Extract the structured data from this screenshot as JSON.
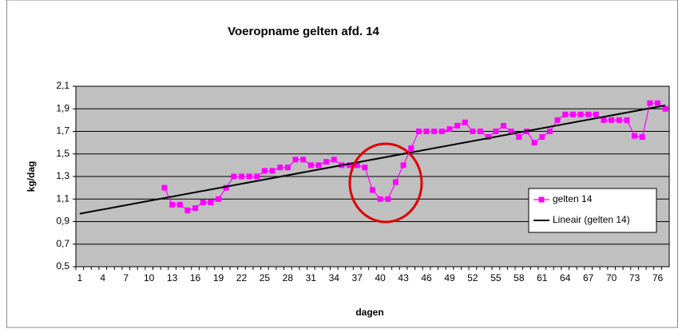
{
  "chart_data": {
    "type": "line",
    "title": "Voeropname gelten afd. 14",
    "x_label": "dagen",
    "y_label": "kg/dag",
    "categories": [
      1,
      null,
      null,
      4,
      null,
      null,
      7,
      null,
      null,
      10,
      null,
      null,
      13,
      null,
      null,
      16,
      null,
      null,
      19,
      null,
      null,
      22,
      null,
      null,
      25,
      null,
      null,
      28,
      null,
      null,
      31,
      null,
      null,
      34,
      null,
      null,
      37,
      null,
      null,
      40,
      null,
      null,
      43,
      null,
      null,
      46,
      null,
      null,
      49,
      null,
      null,
      52,
      null,
      null,
      55,
      null,
      null,
      58,
      null,
      null,
      61,
      null,
      null,
      64,
      null,
      null,
      67,
      null,
      null,
      70,
      null,
      null,
      73,
      null,
      null,
      76,
      null
    ],
    "series": [
      {
        "name": "gelten 14",
        "color": "#ff00ff",
        "values": [
          null,
          null,
          null,
          null,
          null,
          null,
          null,
          null,
          null,
          null,
          null,
          1.2,
          1.05,
          1.05,
          1.0,
          1.02,
          1.07,
          1.07,
          1.1,
          1.2,
          1.3,
          1.3,
          1.3,
          1.3,
          1.35,
          1.35,
          1.38,
          1.38,
          1.45,
          1.45,
          1.4,
          1.4,
          1.43,
          1.45,
          1.4,
          1.4,
          1.4,
          1.38,
          1.18,
          1.1,
          1.1,
          1.25,
          1.4,
          1.55,
          1.7,
          1.7,
          1.7,
          1.7,
          1.72,
          1.75,
          1.78,
          1.7,
          1.7,
          1.65,
          1.7,
          1.75,
          1.7,
          1.65,
          1.7,
          1.6,
          1.65,
          1.7,
          1.8,
          1.85,
          1.85,
          1.85,
          1.85,
          1.85,
          1.8,
          1.8,
          1.8,
          1.8,
          1.66,
          1.65,
          1.95,
          1.95,
          1.9
        ]
      }
    ],
    "trendline": {
      "name": "Lineair (gelten 14)",
      "color": "#000000",
      "start": 0.97,
      "end": 1.93
    },
    "ylim": [
      0.5,
      2.1
    ],
    "yticks": [
      {
        "value": 0.5,
        "label": "0,5"
      },
      {
        "value": 0.7,
        "label": "0,7"
      },
      {
        "value": 0.9,
        "label": "0,9"
      },
      {
        "value": 1.1,
        "label": "1,1"
      },
      {
        "value": 1.3,
        "label": "1,3"
      },
      {
        "value": 1.5,
        "label": "1,5"
      },
      {
        "value": 1.7,
        "label": "1,7"
      },
      {
        "value": 1.9,
        "label": "1,9"
      },
      {
        "value": 2.1,
        "label": "2,1"
      }
    ],
    "grid": true,
    "legend": "right",
    "plot_background": "#c0c0c0"
  }
}
